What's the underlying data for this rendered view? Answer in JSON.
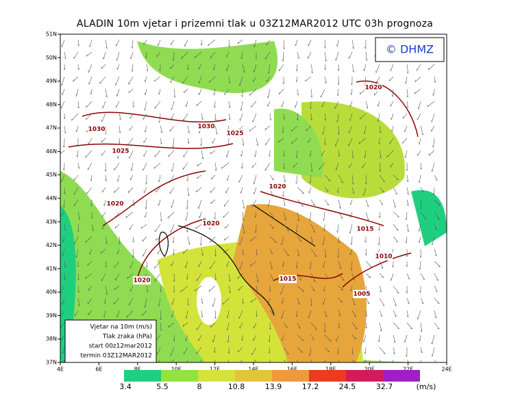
{
  "header": {
    "title": "ALADIN 10m vjetar i prizemni tlak u 03Z12MAR2012 UTC 03h prognoza",
    "logo": "© DHMZ"
  },
  "map": {
    "lat_labels": [
      "51N",
      "50N",
      "49N",
      "48N",
      "47N",
      "46N",
      "45N",
      "44N",
      "43N",
      "42N",
      "41N",
      "40N",
      "39N",
      "38N",
      "37N"
    ],
    "lon_labels": [
      "4E",
      "6E",
      "8E",
      "10E",
      "12E",
      "14E",
      "16E",
      "18E",
      "20E",
      "22E",
      "24E"
    ],
    "isobar_labels": [
      "1020",
      "1030",
      "1030",
      "1025",
      "1025",
      "1020",
      "1020",
      "1020",
      "1015",
      "1010",
      "1015",
      "1020",
      "1005"
    ]
  },
  "info_box": {
    "lines": [
      "Vjetar na 10m (m/s)",
      "Tlak zraka (hPa)",
      "start 00z12mar2012",
      "termin 03Z12MAR2012"
    ]
  },
  "colorbar": {
    "levels": [
      "3.4",
      "5.5",
      "8",
      "10.8",
      "13.9",
      "17.2",
      "24.5",
      "32.7"
    ],
    "unit": "(m/s)",
    "colors": [
      "#1fcf80",
      "#92e33f",
      "#d4e33a",
      "#e6c43a",
      "#ee9a3c",
      "#ee3a1e",
      "#d41a5a",
      "#a01ec8"
    ]
  }
}
